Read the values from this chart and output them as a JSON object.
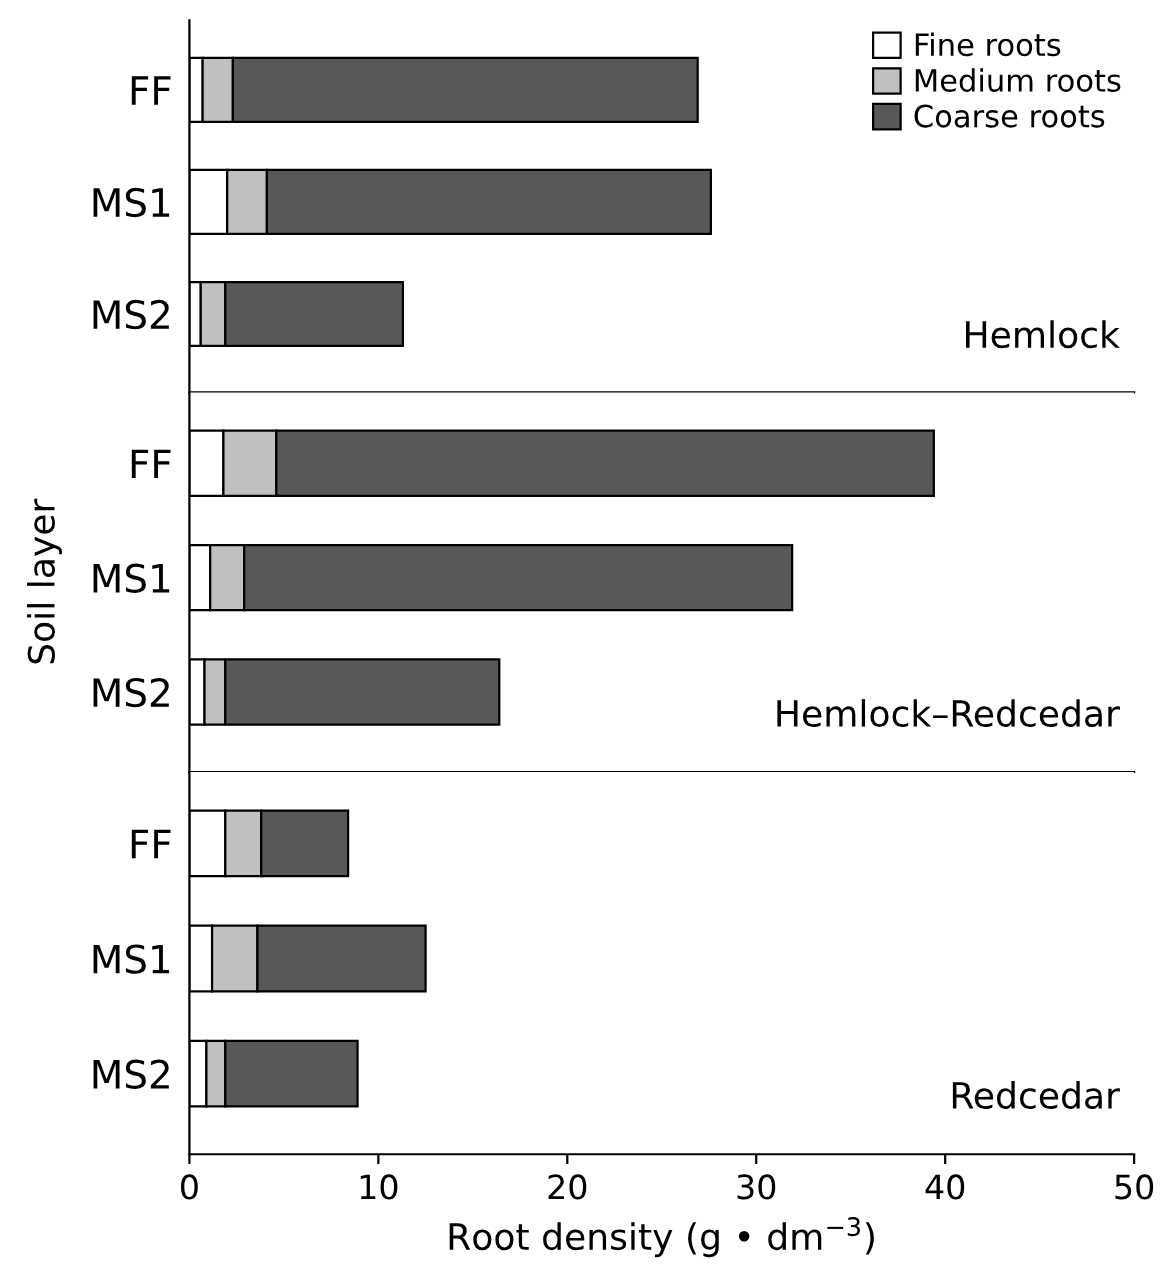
{
  "chart_data": [
    {
      "type": "bar",
      "orientation": "horizontal",
      "stacked": true,
      "title": "Hemlock",
      "categories": [
        "FF",
        "MS1",
        "MS2"
      ],
      "xlim": [
        0,
        50
      ],
      "tick_labels": "y",
      "legend": "top right",
      "series": [
        {
          "name": "Fine roots",
          "color": "#ffffff",
          "values": [
            0.7,
            2.0,
            0.6
          ]
        },
        {
          "name": "Medium roots",
          "color": "#c0c0c0",
          "values": [
            1.6,
            2.1,
            1.3
          ]
        },
        {
          "name": "Coarse roots",
          "color": "#58585a",
          "values": [
            24.6,
            23.5,
            9.4
          ]
        }
      ]
    },
    {
      "type": "bar",
      "orientation": "horizontal",
      "stacked": true,
      "title": "Hemlock–Redcedar",
      "ylabel": "Soil layer",
      "categories": [
        "FF",
        "MS1",
        "MS2"
      ],
      "xlim": [
        0,
        50
      ],
      "tick_labels": "y",
      "series": [
        {
          "color": "#ffffff",
          "values": [
            1.8,
            1.1,
            0.8
          ]
        },
        {
          "color": "#c0c0c0",
          "values": [
            2.8,
            1.8,
            1.1
          ]
        },
        {
          "color": "#58585a",
          "values": [
            34.8,
            29.0,
            14.5
          ]
        }
      ]
    },
    {
      "type": "bar",
      "orientation": "horizontal",
      "stacked": true,
      "title": "Redcedar",
      "xlabel": "Root density (g • dm$^{−3}$)",
      "categories": [
        "FF",
        "MS1",
        "MS2"
      ],
      "xlim": [
        0,
        50
      ],
      "xticks": [
        0,
        10,
        20,
        30,
        40,
        50
      ],
      "series": [
        {
          "color": "#ffffff",
          "values": [
            1.9,
            1.2,
            0.9
          ]
        },
        {
          "color": "#c0c0c0",
          "values": [
            1.9,
            2.4,
            1.0
          ]
        },
        {
          "color": "#58585a",
          "values": [
            4.6,
            8.9,
            7.0
          ]
        }
      ]
    }
  ]
}
